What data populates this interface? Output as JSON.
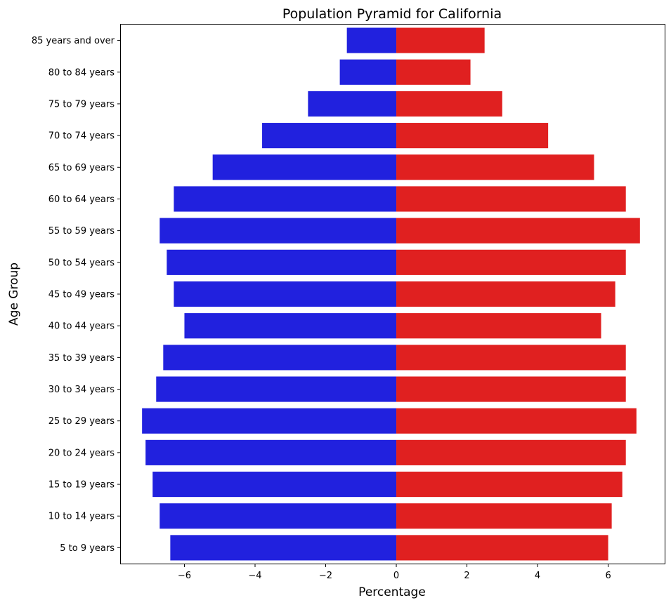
{
  "chart_data": {
    "type": "bar",
    "orientation": "horizontal",
    "title": "Population Pyramid for California",
    "xlabel": "Percentage",
    "ylabel": "Age Group",
    "xlim": [
      -7.8,
      7.6
    ],
    "xticks": [
      -6,
      -4,
      -2,
      0,
      2,
      4,
      6
    ],
    "xtick_labels": [
      "−6",
      "−4",
      "−2",
      "0",
      "2",
      "4",
      "6"
    ],
    "grid": false,
    "categories": [
      "85 years and over",
      "80 to 84 years",
      "75 to 79 years",
      "70 to 74 years",
      "65 to 69 years",
      "60 to 64 years",
      "55 to 59 years",
      "50 to 54 years",
      "45 to 49 years",
      "40 to 44 years",
      "35 to 39 years",
      "30 to 34 years",
      "25 to 29 years",
      "20 to 24 years",
      "15 to 19 years",
      "10 to 14 years",
      "5 to 9 years"
    ],
    "series": [
      {
        "color": "#2121de",
        "values": [
          -1.4,
          -1.6,
          -2.5,
          -3.8,
          -5.2,
          -6.3,
          -6.7,
          -6.5,
          -6.3,
          -6.0,
          -6.6,
          -6.8,
          -7.2,
          -7.1,
          -6.9,
          -6.7,
          -6.4
        ]
      },
      {
        "color": "#e02020",
        "values": [
          2.5,
          2.1,
          3.0,
          4.3,
          5.6,
          6.5,
          6.9,
          6.5,
          6.2,
          5.8,
          6.5,
          6.5,
          6.8,
          6.5,
          6.4,
          6.1,
          6.0
        ]
      }
    ]
  }
}
